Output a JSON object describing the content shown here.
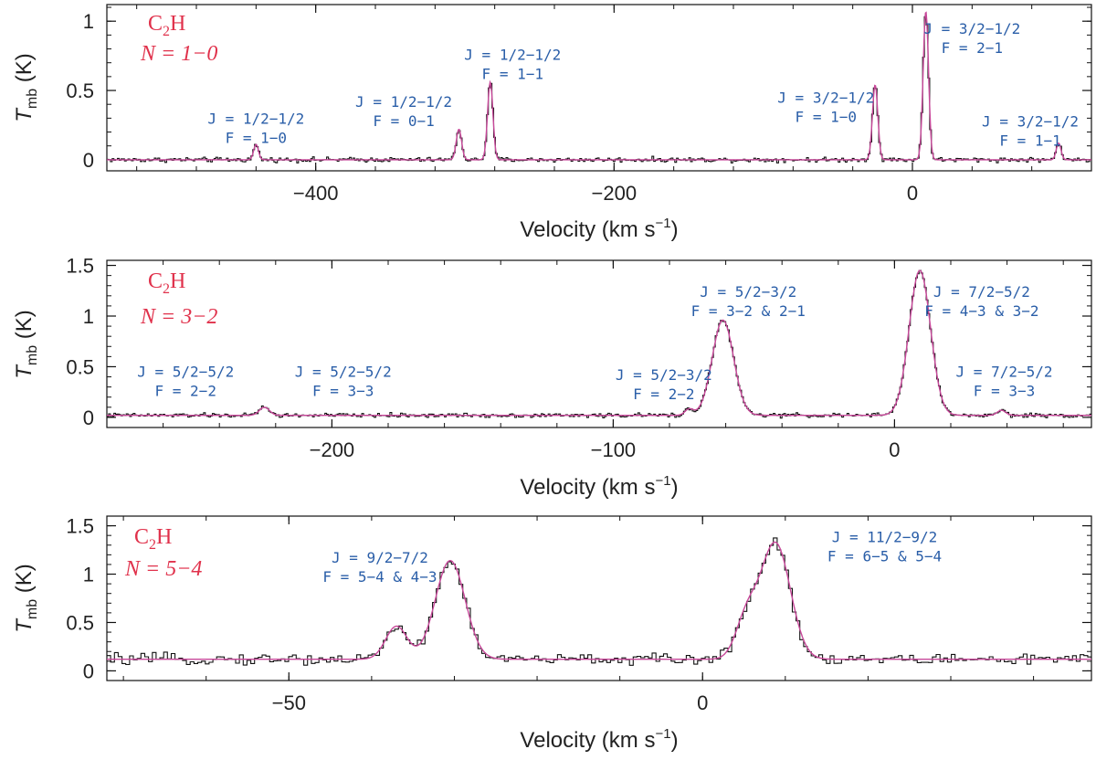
{
  "chart_data": [
    {
      "type": "line",
      "species_main": "C",
      "species_sub": "2",
      "species_end": "H",
      "transition": "N = 1−0",
      "xlabel": "Velocity (km s",
      "xlabel_sup": "−1",
      "xlabel_end": ")",
      "ylabel": "T",
      "ylabel_sub": "mb",
      "ylabel_end": " (K)",
      "xlim": [
        -540,
        120
      ],
      "ylim": [
        -0.08,
        1.12
      ],
      "xticks": [
        -400,
        -200,
        0
      ],
      "xtick_labels": [
        "−400",
        "−200",
        "0"
      ],
      "yticks": [
        0,
        0.5,
        1
      ],
      "ytick_labels": [
        "0",
        "0.5",
        "1"
      ],
      "noise": 0.012,
      "baseline": 0.0,
      "components": [
        {
          "x": -440,
          "amp": 0.11,
          "sigma": 1.6
        },
        {
          "x": -304,
          "amp": 0.22,
          "sigma": 1.8
        },
        {
          "x": -283,
          "amp": 0.56,
          "sigma": 1.8
        },
        {
          "x": -25,
          "amp": 0.54,
          "sigma": 1.8
        },
        {
          "x": 9,
          "amp": 1.07,
          "sigma": 1.8
        },
        {
          "x": 98,
          "amp": 0.12,
          "sigma": 1.6
        }
      ],
      "annotations": [
        {
          "line1": "J = 1/2−1/2",
          "line2": "F = 1−0",
          "x": -440,
          "y": 0.26
        },
        {
          "line1": "J = 1/2−1/2",
          "line2": "F = 0−1",
          "x": -341,
          "y": 0.38
        },
        {
          "line1": "J = 1/2−1/2",
          "line2": "F = 1−1",
          "x": -268,
          "y": 0.72
        },
        {
          "line1": "J = 3/2−1/2",
          "line2": "F = 1−0",
          "x": -58,
          "y": 0.41
        },
        {
          "line1": "J = 3/2−1/2",
          "line2": "F = 2−1",
          "x": 40,
          "y": 0.91
        },
        {
          "line1": "J = 3/2−1/2",
          "line2": "F = 1−1",
          "x": 79,
          "y": 0.24
        }
      ]
    },
    {
      "type": "line",
      "species_main": "C",
      "species_sub": "2",
      "species_end": "H",
      "transition": "N = 3−2",
      "xlabel": "Velocity (km s",
      "xlabel_sup": "−1",
      "xlabel_end": ")",
      "ylabel": "T",
      "ylabel_sub": "mb",
      "ylabel_end": " (K)",
      "xlim": [
        -280,
        70
      ],
      "ylim": [
        -0.1,
        1.55
      ],
      "xticks": [
        -200,
        -100,
        0
      ],
      "xtick_labels": [
        "−200",
        "−100",
        "0"
      ],
      "yticks": [
        0,
        0.5,
        1,
        1.5
      ],
      "ytick_labels": [
        "0",
        "0.5",
        "1",
        "1.5"
      ],
      "noise": 0.015,
      "baseline": 0.02,
      "components": [
        {
          "x": -224,
          "amp": 0.08,
          "sigma": 1.8
        },
        {
          "x": -73,
          "amp": 0.06,
          "sigma": 1.5
        },
        {
          "x": -61,
          "amp": 0.94,
          "sigma": 3.8
        },
        {
          "x": 9,
          "amp": 1.43,
          "sigma": 3.8
        },
        {
          "x": 38,
          "amp": 0.05,
          "sigma": 1.5
        }
      ],
      "annotations": [
        {
          "line1": "J = 5/2−5/2",
          "line2": "F = 2−2",
          "x": -252,
          "y": 0.4
        },
        {
          "line1": "J = 5/2−5/2",
          "line2": "F = 3−3",
          "x": -196,
          "y": 0.4
        },
        {
          "line1": "J = 5/2−3/2",
          "line2": "F = 2−2",
          "x": -82,
          "y": 0.37
        },
        {
          "line1": "J = 5/2−3/2",
          "line2": "F = 3−2 & 2−1",
          "x": -52,
          "y": 1.19
        },
        {
          "line1": "J = 7/2−5/2",
          "line2": "F = 4−3 & 3−2",
          "x": 31,
          "y": 1.19
        },
        {
          "line1": "J = 7/2−5/2",
          "line2": "F = 3−3",
          "x": 39,
          "y": 0.4
        }
      ]
    },
    {
      "type": "line",
      "species_main": "C",
      "species_sub": "2",
      "species_end": "H",
      "transition": "N = 5−4",
      "xlabel": "Velocity (km s",
      "xlabel_sup": "−1",
      "xlabel_end": ")",
      "ylabel": "T",
      "ylabel_sub": "mb",
      "ylabel_end": " (K)",
      "xlim": [
        -72,
        47
      ],
      "ylim": [
        -0.1,
        1.6
      ],
      "xticks": [
        -50,
        0
      ],
      "xtick_labels": [
        "−50",
        "0"
      ],
      "yticks": [
        0,
        0.5,
        1,
        1.5
      ],
      "ytick_labels": [
        "0",
        "0.5",
        "1",
        "1.5"
      ],
      "noise": 0.04,
      "baseline": 0.12,
      "components": [
        {
          "x": -37,
          "amp": 0.34,
          "sigma": 1.3
        },
        {
          "x": -30.5,
          "amp": 1.02,
          "sigma": 1.8
        },
        {
          "x": 5.3,
          "amp": 0.4,
          "sigma": 1.3
        },
        {
          "x": 8.8,
          "amp": 1.2,
          "sigma": 1.8
        }
      ],
      "annotations": [
        {
          "line1": "J = 9/2−7/2",
          "line2": "F = 5−4 & 4−3",
          "x": -39,
          "y": 1.12
        },
        {
          "line1": "J = 11/2−9/2",
          "line2": "F = 6−5 & 5−4",
          "x": 22,
          "y": 1.33
        }
      ]
    }
  ]
}
